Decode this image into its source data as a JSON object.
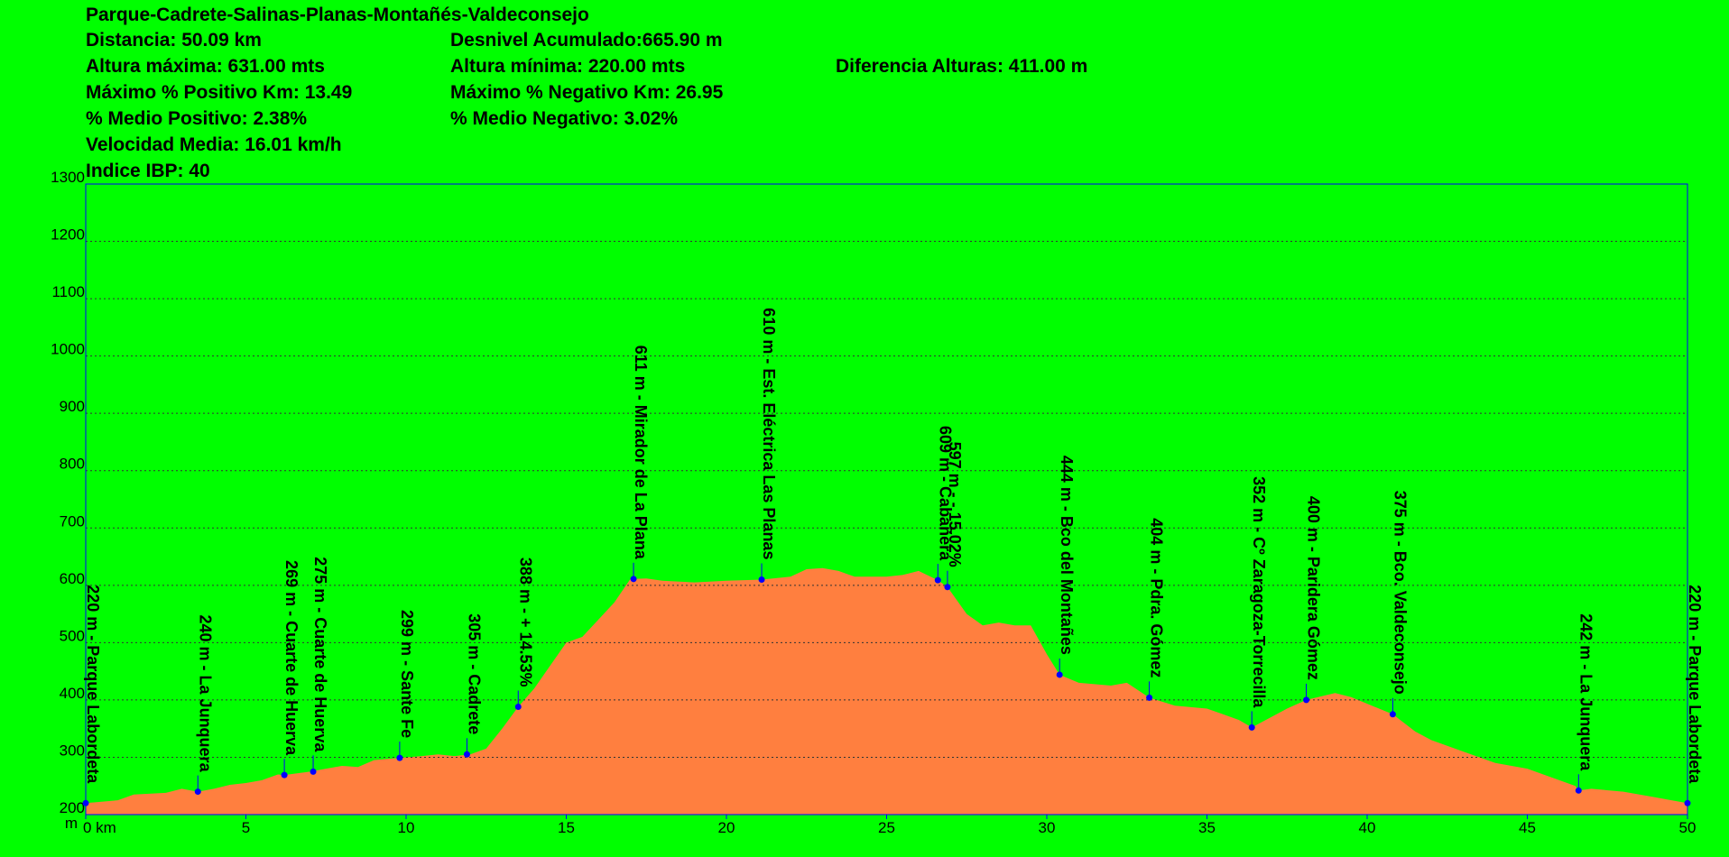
{
  "chart_data": {
    "type": "area",
    "title": "Parque-Cadrete-Salinas-Planas-Montañés-Valdeconsejo",
    "stats": [
      "Distancia: 50.09 km",
      "Desnivel Acumulado:665.90 m",
      "Altura máxima: 631.00 mts",
      "Altura mínima: 220.00 mts",
      "Diferencia Alturas:  411.00 m",
      "Máximo % Positivo Km: 13.49",
      " Máximo % Negativo Km: 26.95",
      "% Medio Positivo: 2.38%",
      "% Medio Negativo: 3.02%",
      "Velocidad Media: 16.01 km/h",
      "Indice IBP: 40"
    ],
    "y_label": "m",
    "color": "#ff7f3f",
    "point_color": "#0000ff",
    "x": [
      0,
      1,
      1.5,
      2.5,
      3,
      3.5,
      4,
      4.5,
      5,
      5.5,
      6,
      6.2,
      7,
      7.5,
      8,
      8.5,
      9,
      9.8,
      10.5,
      11,
      11.5,
      12,
      12.5,
      13,
      13.5,
      14,
      14.5,
      15,
      15.5,
      16,
      16.5,
      17,
      17.5,
      18,
      19,
      20,
      21.1,
      22,
      22.5,
      23,
      23.5,
      24,
      25,
      25.5,
      26,
      26.6,
      26.9,
      27.5,
      28,
      28.5,
      29,
      29.5,
      30,
      30.4,
      31,
      32,
      32.5,
      33.2,
      34,
      35,
      35.5,
      36,
      36.4,
      37,
      37.5,
      38.1,
      39,
      39.5,
      40.8,
      41.5,
      42,
      43,
      44,
      45,
      45.5,
      46.5,
      46.6,
      47,
      48,
      49,
      49.5,
      50
    ],
    "values": [
      220,
      225,
      235,
      238,
      245,
      240,
      245,
      252,
      255,
      260,
      270,
      269,
      275,
      280,
      285,
      283,
      295,
      299,
      302,
      305,
      302,
      305,
      315,
      350,
      388,
      420,
      460,
      500,
      510,
      540,
      570,
      611,
      612,
      608,
      605,
      608,
      610,
      615,
      628,
      630,
      625,
      615,
      615,
      618,
      625,
      609,
      597,
      550,
      530,
      535,
      530,
      530,
      480,
      444,
      430,
      425,
      430,
      404,
      390,
      385,
      375,
      365,
      352,
      370,
      385,
      400,
      412,
      405,
      375,
      345,
      330,
      310,
      290,
      280,
      270,
      250,
      242,
      245,
      240,
      230,
      225,
      220
    ],
    "waypoints": [
      {
        "x": 0,
        "value": 220,
        "label": "220 m - Parque Labordeta"
      },
      {
        "x": 3.5,
        "value": 240,
        "label": "240 m - La Junquera"
      },
      {
        "x": 6.2,
        "value": 269,
        "label": "269 m - Cuarte de Huerva"
      },
      {
        "x": 7.1,
        "value": 275,
        "label": "275 m - Cuarte de Huerva"
      },
      {
        "x": 9.8,
        "value": 299,
        "label": "299 m - Sante Fe"
      },
      {
        "x": 11.9,
        "value": 305,
        "label": "305 m - Cadrete"
      },
      {
        "x": 13.5,
        "value": 388,
        "label": "388 m - + 14.53%"
      },
      {
        "x": 17.1,
        "value": 611,
        "label": "611 m - Mirador de La Plana"
      },
      {
        "x": 21.1,
        "value": 610,
        "label": "610 m - Est. Eléctrica Las Planas"
      },
      {
        "x": 26.6,
        "value": 609,
        "label": "609 m - Cabañera"
      },
      {
        "x": 26.9,
        "value": 597,
        "label": "597 m - - 15.02%"
      },
      {
        "x": 30.4,
        "value": 444,
        "label": "444 m - Bco del Montañes"
      },
      {
        "x": 33.2,
        "value": 404,
        "label": "404 m - Pdra. Gómez"
      },
      {
        "x": 36.4,
        "value": 352,
        "label": "352 m - Cº Zaragoza-Torrecilla"
      },
      {
        "x": 38.1,
        "value": 400,
        "label": "400 m - Paridera Gómez"
      },
      {
        "x": 40.8,
        "value": 375,
        "label": "375 m - Bco. Valdeconsejo"
      },
      {
        "x": 46.6,
        "value": 242,
        "label": "242 m - La Junquera"
      },
      {
        "x": 50,
        "value": 220,
        "label": "220 m - Parque Labordeta"
      }
    ],
    "xlim": [
      0,
      50
    ],
    "xticks": [
      {
        "value": 0,
        "label": "0 km"
      },
      5,
      10,
      15,
      20,
      25,
      30,
      35,
      40,
      45,
      50
    ],
    "ylim": [
      200,
      1300
    ],
    "yticks": [
      200,
      300,
      400,
      500,
      600,
      700,
      800,
      900,
      1000,
      1100,
      1200,
      1300
    ],
    "grid": true
  }
}
